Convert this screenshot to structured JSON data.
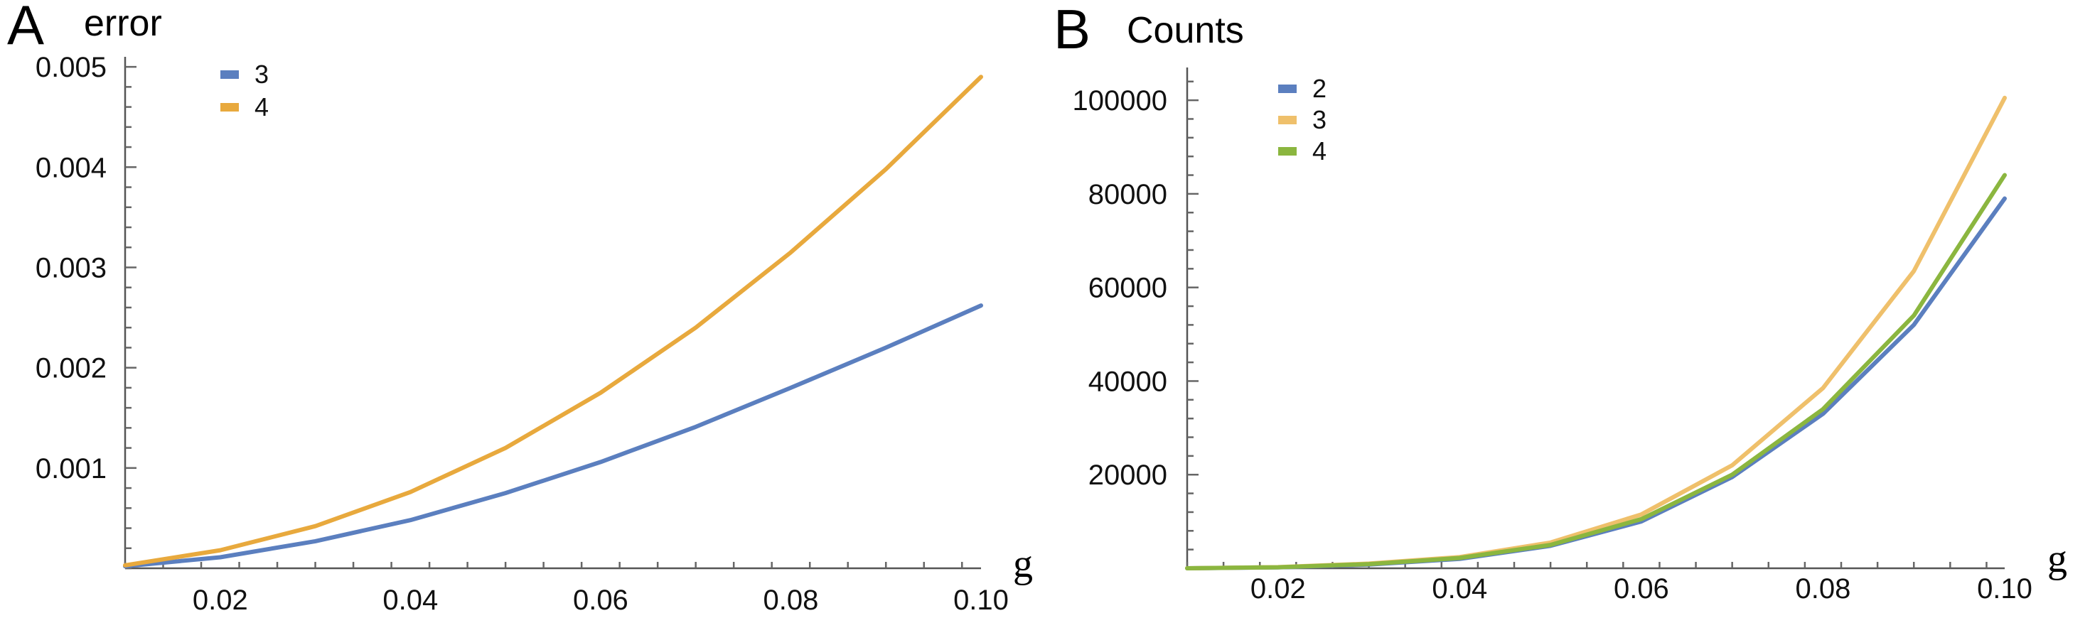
{
  "chart_data": [
    {
      "type": "line",
      "panel": "A",
      "title": "error",
      "xlabel": "g",
      "ylabel": "",
      "xlim": [
        0.01,
        0.1
      ],
      "ylim": [
        0,
        0.0051
      ],
      "x": [
        0.01,
        0.02,
        0.03,
        0.04,
        0.05,
        0.06,
        0.07,
        0.08,
        0.09,
        0.1
      ],
      "xticks": [
        0.02,
        0.04,
        0.06,
        0.08,
        0.1
      ],
      "xtick_labels": [
        "0.02",
        "0.04",
        "0.06",
        "0.08",
        "0.10"
      ],
      "yticks": [
        0.001,
        0.002,
        0.003,
        0.004,
        0.005
      ],
      "ytick_labels": [
        "0.001",
        "0.002",
        "0.003",
        "0.004",
        "0.005"
      ],
      "legend_position": "top-left",
      "series": [
        {
          "name": "3",
          "color": "#5b7fbf",
          "values": [
            2e-05,
            0.00011,
            0.00027,
            0.00048,
            0.00075,
            0.00106,
            0.00141,
            0.0018,
            0.0022,
            0.00262
          ]
        },
        {
          "name": "4",
          "color": "#e8a93d",
          "values": [
            3e-05,
            0.00018,
            0.00042,
            0.00076,
            0.0012,
            0.00175,
            0.0024,
            0.00315,
            0.00398,
            0.0049
          ]
        }
      ]
    },
    {
      "type": "line",
      "panel": "B",
      "title": "Counts",
      "xlabel": "g",
      "ylabel": "",
      "xlim": [
        0.01,
        0.1
      ],
      "ylim": [
        0,
        107000
      ],
      "x": [
        0.01,
        0.02,
        0.03,
        0.04,
        0.05,
        0.06,
        0.07,
        0.08,
        0.09,
        0.1
      ],
      "xticks": [
        0.02,
        0.04,
        0.06,
        0.08,
        0.1
      ],
      "xtick_labels": [
        "0.02",
        "0.04",
        "0.06",
        "0.08",
        "0.10"
      ],
      "yticks": [
        20000,
        40000,
        60000,
        80000,
        100000
      ],
      "ytick_labels": [
        "20000",
        "40000",
        "60000",
        "80000",
        "100000"
      ],
      "legend_position": "top-left",
      "series": [
        {
          "name": "2",
          "color": "#5b7fbf",
          "values": [
            0,
            200,
            800,
            2000,
            4800,
            10000,
            19500,
            33000,
            52000,
            79000
          ]
        },
        {
          "name": "3",
          "color": "#efc06b",
          "values": [
            0,
            250,
            1000,
            2400,
            5500,
            11500,
            22000,
            38500,
            63500,
            100500
          ]
        },
        {
          "name": "4",
          "color": "#8bb63f",
          "values": [
            0,
            220,
            900,
            2200,
            5000,
            10500,
            20000,
            34000,
            54000,
            84000
          ]
        }
      ]
    }
  ]
}
